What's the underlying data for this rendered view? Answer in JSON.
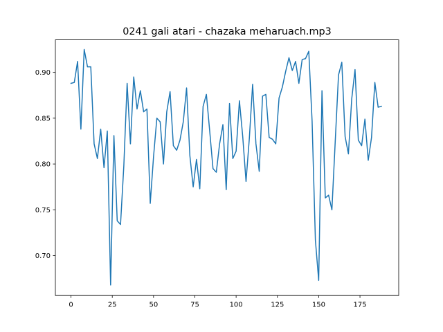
{
  "chart_data": {
    "type": "line",
    "title": "0241 gali atari - chazaka meharuach.mp3",
    "xlabel": "",
    "ylabel": "",
    "xlim": [
      -9.45,
      198.45
    ],
    "ylim": [
      0.6565,
      0.9355
    ],
    "xticks": [
      0,
      25,
      50,
      75,
      100,
      125,
      150,
      175
    ],
    "xtick_labels": [
      "0",
      "25",
      "50",
      "75",
      "100",
      "125",
      "150",
      "175"
    ],
    "yticks": [
      0.7,
      0.75,
      0.8,
      0.85,
      0.9
    ],
    "ytick_labels": [
      "0.70",
      "0.75",
      "0.80",
      "0.85",
      "0.90"
    ],
    "grid": false,
    "line_color": "#1f77b4",
    "series": [
      {
        "x": [
          0,
          2,
          4,
          6,
          8,
          10,
          12,
          14,
          16,
          18,
          20,
          22,
          24,
          26,
          28,
          30,
          32,
          34,
          36,
          38,
          40,
          42,
          44,
          46,
          48,
          50,
          52,
          54,
          56,
          58,
          60,
          62,
          64,
          66,
          68,
          70,
          72,
          74,
          76,
          78,
          80,
          82,
          84,
          86,
          88,
          90,
          92,
          94,
          96,
          98,
          100,
          102,
          104,
          106,
          108,
          110,
          112,
          114,
          116,
          118,
          120,
          122,
          124,
          126,
          128,
          130,
          132,
          134,
          136,
          138,
          140,
          142,
          144,
          146,
          148,
          150,
          152,
          154,
          156,
          158,
          160,
          162,
          164,
          166,
          168,
          170,
          172,
          174,
          176,
          178,
          180,
          182,
          184,
          186,
          188
        ],
        "y": [
          0.888,
          0.889,
          0.912,
          0.838,
          0.925,
          0.906,
          0.906,
          0.822,
          0.806,
          0.838,
          0.796,
          0.836,
          0.668,
          0.831,
          0.738,
          0.734,
          0.798,
          0.888,
          0.822,
          0.895,
          0.86,
          0.88,
          0.857,
          0.86,
          0.757,
          0.808,
          0.85,
          0.846,
          0.8,
          0.857,
          0.879,
          0.82,
          0.815,
          0.826,
          0.846,
          0.883,
          0.809,
          0.775,
          0.805,
          0.773,
          0.863,
          0.876,
          0.836,
          0.795,
          0.791,
          0.822,
          0.843,
          0.772,
          0.866,
          0.806,
          0.814,
          0.869,
          0.83,
          0.781,
          0.828,
          0.887,
          0.822,
          0.792,
          0.874,
          0.876,
          0.829,
          0.827,
          0.822,
          0.872,
          0.884,
          0.901,
          0.916,
          0.902,
          0.912,
          0.888,
          0.914,
          0.915,
          0.923,
          0.847,
          0.717,
          0.673,
          0.88,
          0.763,
          0.766,
          0.75,
          0.824,
          0.897,
          0.911,
          0.83,
          0.811,
          0.871,
          0.903,
          0.826,
          0.82,
          0.849,
          0.804,
          0.829,
          0.889,
          0.862,
          0.863
        ]
      }
    ]
  }
}
